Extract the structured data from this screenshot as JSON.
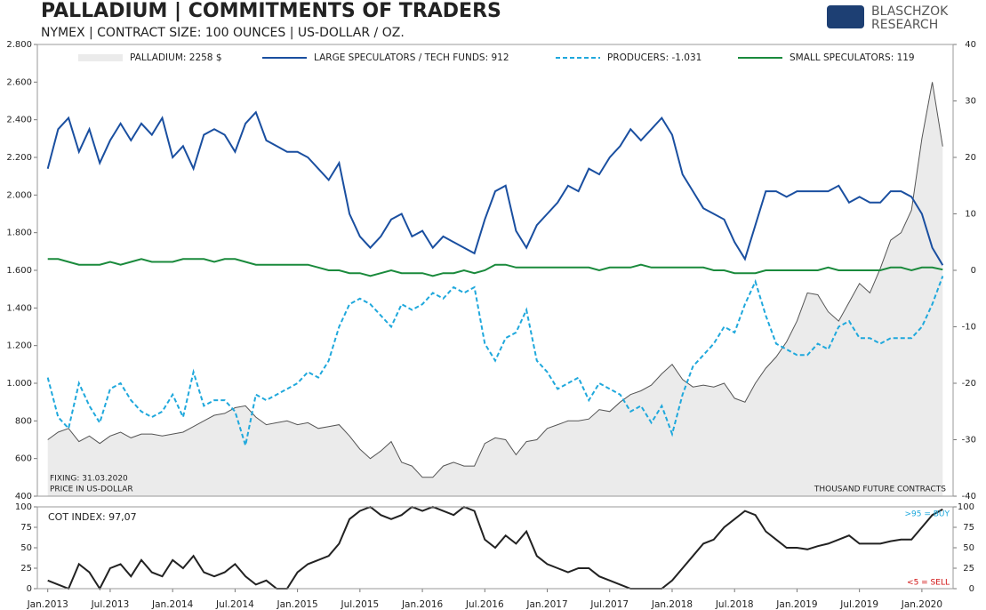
{
  "chart_data": [
    {
      "type": "line",
      "title": "PALLADIUM | COMMITMENTS OF TRADERS",
      "subtitle": "NYMEX | CONTRACT SIZE: 100 OUNCES | US-DOLLAR / OZ.",
      "notes": {
        "fixing": "FIXING: 31.03.2020",
        "price": "PRICE IN US-DOLLAR",
        "units": "THOUSAND FUTURE CONTRACTS"
      },
      "x": [
        "2013-01",
        "2013-02",
        "2013-03",
        "2013-04",
        "2013-05",
        "2013-06",
        "2013-07",
        "2013-08",
        "2013-09",
        "2013-10",
        "2013-11",
        "2013-12",
        "2014-01",
        "2014-02",
        "2014-03",
        "2014-04",
        "2014-05",
        "2014-06",
        "2014-07",
        "2014-08",
        "2014-09",
        "2014-10",
        "2014-11",
        "2014-12",
        "2015-01",
        "2015-02",
        "2015-03",
        "2015-04",
        "2015-05",
        "2015-06",
        "2015-07",
        "2015-08",
        "2015-09",
        "2015-10",
        "2015-11",
        "2015-12",
        "2016-01",
        "2016-02",
        "2016-03",
        "2016-04",
        "2016-05",
        "2016-06",
        "2016-07",
        "2016-08",
        "2016-09",
        "2016-10",
        "2016-11",
        "2016-12",
        "2017-01",
        "2017-02",
        "2017-03",
        "2017-04",
        "2017-05",
        "2017-06",
        "2017-07",
        "2017-08",
        "2017-09",
        "2017-10",
        "2017-11",
        "2017-12",
        "2018-01",
        "2018-02",
        "2018-03",
        "2018-04",
        "2018-05",
        "2018-06",
        "2018-07",
        "2018-08",
        "2018-09",
        "2018-10",
        "2018-11",
        "2018-12",
        "2019-01",
        "2019-02",
        "2019-03",
        "2019-04",
        "2019-05",
        "2019-06",
        "2019-07",
        "2019-08",
        "2019-09",
        "2019-10",
        "2019-11",
        "2019-12",
        "2020-01",
        "2020-02",
        "2020-03"
      ],
      "xlim": [
        "2012-12",
        "2020-04"
      ],
      "ylim": [
        400,
        2800
      ],
      "yticks": [
        400,
        600,
        800,
        {
          "value": 1000,
          "label": "1.000"
        },
        {
          "value": 1200,
          "label": "1.200"
        },
        {
          "value": 1400,
          "label": "1.400"
        },
        {
          "value": 1600,
          "label": "1.600"
        },
        {
          "value": 1800,
          "label": "1.800"
        },
        {
          "value": 2000,
          "label": "2.000"
        },
        {
          "value": 2200,
          "label": "2.200"
        },
        {
          "value": 2400,
          "label": "2.400"
        },
        {
          "value": 2600,
          "label": "2.600"
        },
        {
          "value": 2800,
          "label": "2.800"
        }
      ],
      "y2lim": [
        -40,
        40
      ],
      "y2ticks": [
        -40,
        -30,
        -20,
        -10,
        0,
        10,
        20,
        30,
        40
      ],
      "series": [
        {
          "name": "PALLADIUM: 2258 $",
          "color": "#555555",
          "area": true,
          "fill": "#ebebeb",
          "values": [
            700,
            740,
            760,
            690,
            720,
            680,
            720,
            740,
            710,
            730,
            730,
            720,
            730,
            740,
            770,
            800,
            830,
            840,
            870,
            880,
            820,
            780,
            790,
            800,
            780,
            790,
            760,
            770,
            780,
            720,
            650,
            600,
            640,
            690,
            580,
            560,
            500,
            500,
            560,
            580,
            560,
            560,
            680,
            710,
            700,
            620,
            690,
            700,
            760,
            780,
            800,
            800,
            810,
            860,
            850,
            900,
            940,
            960,
            990,
            1050,
            1100,
            1020,
            980,
            990,
            980,
            1000,
            920,
            900,
            1000,
            1080,
            1140,
            1220,
            1330,
            1480,
            1470,
            1380,
            1330,
            1430,
            1530,
            1480,
            1610,
            1760,
            1800,
            1920,
            2300,
            2600,
            2258
          ]
        },
        {
          "name": "LARGE SPECULATORS / TECH FUNDS: 912",
          "color": "#1a4fa0",
          "axis": "y2",
          "values": [
            18,
            25,
            27,
            21,
            25,
            19,
            23,
            26,
            23,
            26,
            24,
            27,
            20,
            22,
            18,
            24,
            25,
            24,
            21,
            26,
            28,
            23,
            22,
            21,
            21,
            20,
            18,
            16,
            19,
            10,
            6,
            4,
            6,
            9,
            10,
            6,
            7,
            4,
            6,
            5,
            4,
            3,
            9,
            14,
            15,
            7,
            4,
            8,
            10,
            12,
            15,
            14,
            18,
            17,
            20,
            22,
            25,
            23,
            25,
            27,
            24,
            17,
            14,
            11,
            10,
            9,
            5,
            2,
            8,
            14,
            14,
            13,
            14,
            14,
            14,
            14,
            15,
            12,
            13,
            12,
            12,
            14,
            14,
            13,
            10,
            4,
            0.912
          ]
        },
        {
          "name": "PRODUCERS: -1.031",
          "color": "#1fa8dc",
          "axis": "y2",
          "dashed": true,
          "values": [
            -19,
            -26,
            -28,
            -20,
            -24,
            -27,
            -21,
            -20,
            -23,
            -25,
            -26,
            -25,
            -22,
            -26,
            -18,
            -24,
            -23,
            -23,
            -25,
            -31,
            -22,
            -23,
            -22,
            -21,
            -20,
            -18,
            -19,
            -16,
            -10,
            -6,
            -5,
            -6,
            -8,
            -10,
            -6,
            -7,
            -6,
            -4,
            -5,
            -3,
            -4,
            -3,
            -13,
            -16,
            -12,
            -11,
            -7,
            -16,
            -18,
            -21,
            -20,
            -19,
            -23,
            -20,
            -21,
            -22,
            -25,
            -24,
            -27,
            -24,
            -29,
            -22,
            -17,
            -15,
            -13,
            -10,
            -11,
            -6,
            -2,
            -8,
            -13,
            -14,
            -15,
            -15,
            -13,
            -14,
            -10,
            -9,
            -12,
            -12,
            -13,
            -12,
            -12,
            -12,
            -10,
            -6,
            -1.031
          ]
        },
        {
          "name": "SMALL SPECULATORS: 119",
          "color": "#1a8a3c",
          "axis": "y2",
          "values": [
            2,
            2,
            1.5,
            1,
            1,
            1,
            1.5,
            1,
            1.5,
            2,
            1.5,
            1.5,
            1.5,
            2,
            2,
            2,
            1.5,
            2,
            2,
            1.5,
            1,
            1,
            1,
            1,
            1,
            1,
            0.5,
            0,
            0,
            -0.5,
            -0.5,
            -1,
            -0.5,
            0,
            -0.5,
            -0.5,
            -0.5,
            -1,
            -0.5,
            -0.5,
            0,
            -0.5,
            0,
            1,
            1,
            0.5,
            0.5,
            0.5,
            0.5,
            0.5,
            0.5,
            0.5,
            0.5,
            0,
            0.5,
            0.5,
            0.5,
            1,
            0.5,
            0.5,
            0.5,
            0.5,
            0.5,
            0.5,
            0,
            0,
            -0.5,
            -0.5,
            -0.5,
            0,
            0,
            0,
            0,
            0,
            0,
            0.5,
            0,
            0,
            0,
            0,
            0,
            0.5,
            0.5,
            0,
            0.5,
            0.5,
            0.119
          ]
        }
      ]
    },
    {
      "type": "line",
      "index_label": "COT INDEX: 97,07",
      "buy_note": ">95 = BUY",
      "sell_note": "<5 = SELL",
      "x": [
        "2013-01",
        "2013-02",
        "2013-03",
        "2013-04",
        "2013-05",
        "2013-06",
        "2013-07",
        "2013-08",
        "2013-09",
        "2013-10",
        "2013-11",
        "2013-12",
        "2014-01",
        "2014-02",
        "2014-03",
        "2014-04",
        "2014-05",
        "2014-06",
        "2014-07",
        "2014-08",
        "2014-09",
        "2014-10",
        "2014-11",
        "2014-12",
        "2015-01",
        "2015-02",
        "2015-03",
        "2015-04",
        "2015-05",
        "2015-06",
        "2015-07",
        "2015-08",
        "2015-09",
        "2015-10",
        "2015-11",
        "2015-12",
        "2016-01",
        "2016-02",
        "2016-03",
        "2016-04",
        "2016-05",
        "2016-06",
        "2016-07",
        "2016-08",
        "2016-09",
        "2016-10",
        "2016-11",
        "2016-12",
        "2017-01",
        "2017-02",
        "2017-03",
        "2017-04",
        "2017-05",
        "2017-06",
        "2017-07",
        "2017-08",
        "2017-09",
        "2017-10",
        "2017-11",
        "2017-12",
        "2018-01",
        "2018-02",
        "2018-03",
        "2018-04",
        "2018-05",
        "2018-06",
        "2018-07",
        "2018-08",
        "2018-09",
        "2018-10",
        "2018-11",
        "2018-12",
        "2019-01",
        "2019-02",
        "2019-03",
        "2019-04",
        "2019-05",
        "2019-06",
        "2019-07",
        "2019-08",
        "2019-09",
        "2019-10",
        "2019-11",
        "2019-12",
        "2020-01",
        "2020-02",
        "2020-03"
      ],
      "xlim": [
        "2012-12",
        "2020-04"
      ],
      "xticks": [
        {
          "value": "2013-01",
          "label": "Jan.2013"
        },
        {
          "value": "2013-07",
          "label": "Jul.2013"
        },
        {
          "value": "2014-01",
          "label": "Jan.2014"
        },
        {
          "value": "2014-07",
          "label": "Jul.2014"
        },
        {
          "value": "2015-01",
          "label": "Jan.2015"
        },
        {
          "value": "2015-07",
          "label": "Jul.2015"
        },
        {
          "value": "2016-01",
          "label": "Jan.2016"
        },
        {
          "value": "2016-07",
          "label": "Jul.2016"
        },
        {
          "value": "2017-01",
          "label": "Jan.2017"
        },
        {
          "value": "2017-07",
          "label": "Jul.2017"
        },
        {
          "value": "2018-01",
          "label": "Jan.2018"
        },
        {
          "value": "2018-07",
          "label": "Jul.2018"
        },
        {
          "value": "2019-01",
          "label": "Jan.2019"
        },
        {
          "value": "2019-07",
          "label": "Jul.2019"
        },
        {
          "value": "2020-01",
          "label": "Jan.2020"
        }
      ],
      "ylim": [
        0,
        100
      ],
      "yticks": [
        0,
        25,
        50,
        75,
        100
      ],
      "series": [
        {
          "name": "COT INDEX",
          "color": "#222222",
          "values": [
            10,
            5,
            0,
            30,
            20,
            0,
            25,
            30,
            15,
            35,
            20,
            15,
            35,
            25,
            40,
            20,
            15,
            20,
            30,
            15,
            5,
            10,
            0,
            0,
            20,
            30,
            35,
            40,
            55,
            85,
            95,
            100,
            90,
            85,
            90,
            100,
            95,
            100,
            95,
            90,
            100,
            95,
            60,
            50,
            65,
            55,
            70,
            40,
            30,
            25,
            20,
            25,
            25,
            15,
            10,
            5,
            0,
            0,
            0,
            0,
            10,
            25,
            40,
            55,
            60,
            75,
            85,
            95,
            90,
            70,
            60,
            50,
            50,
            48,
            52,
            55,
            60,
            65,
            55,
            55,
            55,
            58,
            60,
            60,
            75,
            90,
            97.07
          ]
        }
      ]
    }
  ],
  "logo": {
    "lines": [
      "BLASCHZOK",
      "RESEARCH"
    ]
  }
}
